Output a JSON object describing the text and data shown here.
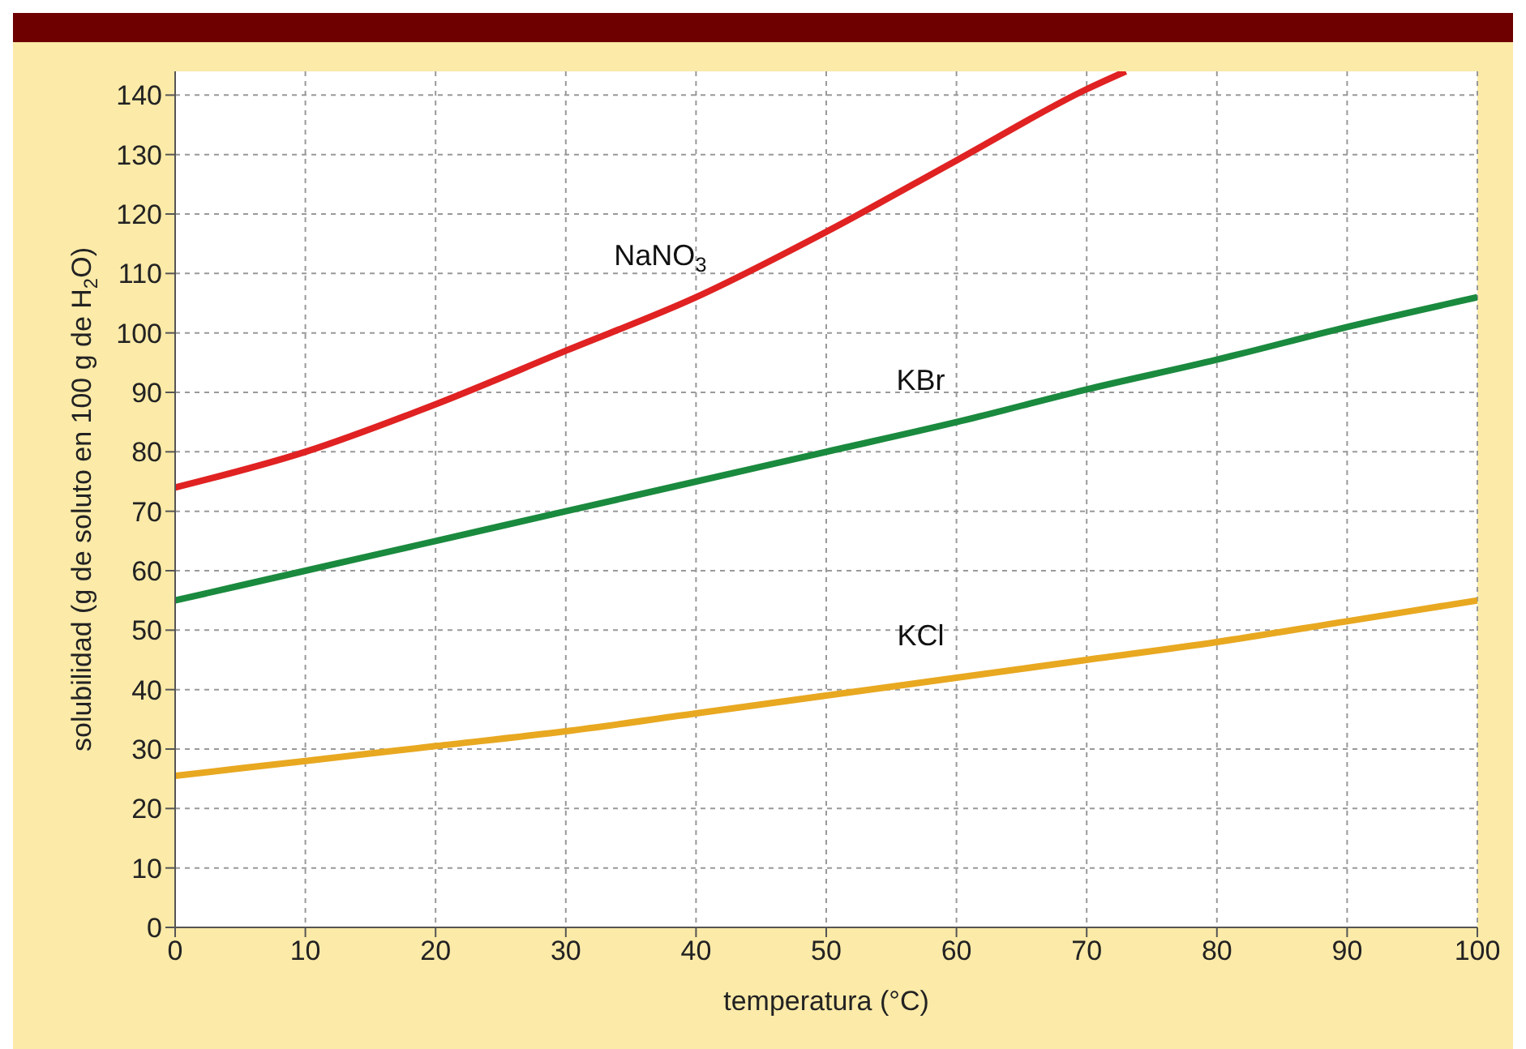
{
  "chart_data": {
    "type": "line",
    "xlabel": "temperatura (°C)",
    "ylabel": "solubilidad (g de soluto en 100 g de H$_{2}$O)",
    "x": [
      0,
      10,
      20,
      30,
      40,
      50,
      60,
      70,
      80,
      90,
      100
    ],
    "xlim": [
      0,
      100
    ],
    "xticks": [
      0,
      10,
      20,
      30,
      40,
      50,
      60,
      70,
      80,
      90,
      100
    ],
    "ylim": [
      0,
      144
    ],
    "yticks": [
      0,
      10,
      20,
      30,
      40,
      50,
      60,
      70,
      80,
      90,
      100,
      110,
      120,
      130,
      140
    ],
    "grid": true,
    "marker": "none",
    "line_style": "solid",
    "series": [
      {
        "name": "NaNO$_{3}$",
        "color": "#e02222",
        "x": [
          0,
          10,
          20,
          30,
          40,
          50,
          60,
          70,
          73
        ],
        "values": [
          74,
          80,
          88,
          97,
          106,
          117,
          129,
          141,
          144
        ]
      },
      {
        "name": "KBr",
        "color": "#1a8a3e",
        "values": [
          55,
          60,
          65,
          70,
          75,
          80,
          85,
          90.5,
          95.5,
          101,
          106
        ]
      },
      {
        "name": "KCl",
        "color": "#e8a820",
        "values": [
          25.5,
          28,
          30.5,
          33,
          36,
          39,
          42,
          45,
          48,
          51.5,
          55
        ]
      }
    ]
  }
}
